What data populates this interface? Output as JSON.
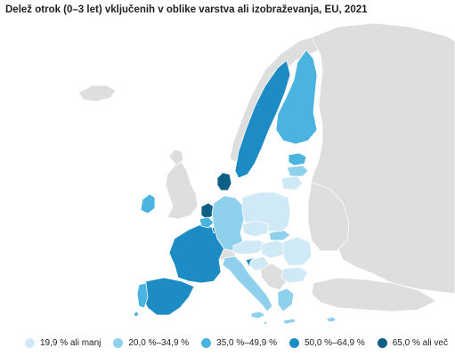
{
  "title": "Delež otrok (0–3 let) vključenih v oblike varstva ali izobraževanja, EU, 2021",
  "colors": {
    "non_eu": "#dedede",
    "non_eu_border": "#ffffff",
    "eu_border": "#ffffff",
    "class1": "#cfeaf6",
    "class2": "#8fd0ec",
    "class3": "#4ab3e0",
    "class4": "#1d8cc4",
    "class5": "#0d5f86"
  },
  "legend": [
    {
      "label": "19,9 % ali manj",
      "color": "#cfeaf6"
    },
    {
      "label": "20,0 %–34,9 %",
      "color": "#8fd0ec"
    },
    {
      "label": "35,0 %–49,9 %",
      "color": "#4ab3e0"
    },
    {
      "label": "50,0 %–64,9 %",
      "color": "#1d8cc4"
    },
    {
      "label": "65,0 % ali več",
      "color": "#0d5f86"
    }
  ]
}
